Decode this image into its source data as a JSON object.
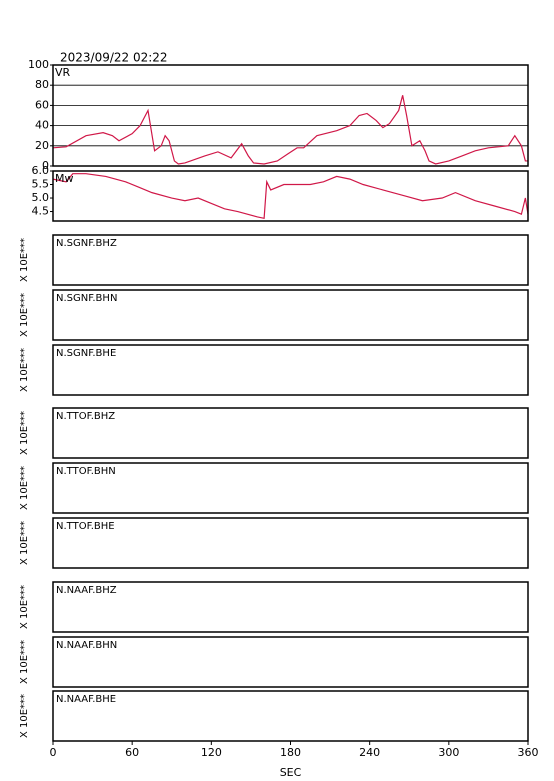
{
  "title": "2023/09/22 02:22",
  "chart_data": [
    {
      "type": "line",
      "label": "VR",
      "color": "#d01848",
      "grid": true,
      "x": [
        0,
        10,
        25,
        38,
        45,
        50,
        60,
        66,
        72,
        77,
        82,
        85,
        88,
        92,
        95,
        100,
        115,
        125,
        135,
        143,
        148,
        152,
        160,
        170,
        178,
        185,
        190,
        200,
        215,
        225,
        232,
        238,
        245,
        250,
        255,
        262,
        265,
        268,
        272,
        278,
        282,
        285,
        290,
        300,
        310,
        320,
        330,
        345,
        350,
        355,
        358,
        360
      ],
      "values": [
        18,
        19,
        30,
        33,
        30,
        25,
        32,
        40,
        55,
        15,
        20,
        30,
        25,
        5,
        2,
        3,
        10,
        14,
        8,
        22,
        10,
        3,
        2,
        5,
        12,
        18,
        18,
        30,
        35,
        40,
        50,
        52,
        45,
        38,
        42,
        55,
        70,
        50,
        20,
        25,
        15,
        5,
        2,
        5,
        10,
        15,
        18,
        20,
        30,
        20,
        5,
        5
      ],
      "xlim": [
        0,
        360
      ],
      "ylim": [
        0,
        100
      ],
      "yticks": [
        0,
        20,
        40,
        60,
        80,
        100
      ]
    },
    {
      "type": "line",
      "label": "Mw",
      "color": "#d01848",
      "grid": false,
      "x": [
        0,
        10,
        15,
        25,
        40,
        55,
        65,
        75,
        90,
        100,
        110,
        120,
        130,
        140,
        155,
        160,
        162,
        165,
        175,
        195,
        205,
        215,
        225,
        235,
        250,
        265,
        280,
        295,
        305,
        320,
        335,
        350,
        355,
        358,
        360
      ],
      "values": [
        5.7,
        5.6,
        5.9,
        5.9,
        5.8,
        5.6,
        5.4,
        5.2,
        5.0,
        4.9,
        5.0,
        4.8,
        4.6,
        4.5,
        4.3,
        4.25,
        5.6,
        5.3,
        5.5,
        5.5,
        5.6,
        5.8,
        5.7,
        5.5,
        5.3,
        5.1,
        4.9,
        5.0,
        5.2,
        4.9,
        4.7,
        4.5,
        4.4,
        5.0,
        4.4
      ],
      "xlim": [
        0,
        360
      ],
      "ylim": [
        4.15,
        6.0
      ],
      "yticks": [
        {
          "value": 4.5,
          "label": "4.5"
        },
        {
          "value": 5,
          "label": "5.0"
        },
        {
          "value": 5.5,
          "label": "5.5"
        },
        {
          "value": 6,
          "label": "6.0"
        }
      ]
    }
  ],
  "x_axis": {
    "label": "SEC",
    "xlim": [
      0,
      360
    ],
    "xticks": [
      0,
      60,
      120,
      180,
      240,
      300,
      360
    ]
  },
  "waveform_panels": [
    {
      "label": "N.SGNF.BHZ",
      "ylabel": "X 10E***"
    },
    {
      "label": "N.SGNF.BHN",
      "ylabel": "X 10E***"
    },
    {
      "label": "N.SGNF.BHE",
      "ylabel": "X 10E***"
    },
    {
      "label": "N.TTOF.BHZ",
      "ylabel": "X 10E***"
    },
    {
      "label": "N.TTOF.BHN",
      "ylabel": "X 10E***"
    },
    {
      "label": "N.TTOF.BHE",
      "ylabel": "X 10E***"
    },
    {
      "label": "N.NAAF.BHZ",
      "ylabel": "X 10E***"
    },
    {
      "label": "N.NAAF.BHN",
      "ylabel": "X 10E***"
    },
    {
      "label": "N.NAAF.BHE",
      "ylabel": "X 10E***"
    }
  ]
}
